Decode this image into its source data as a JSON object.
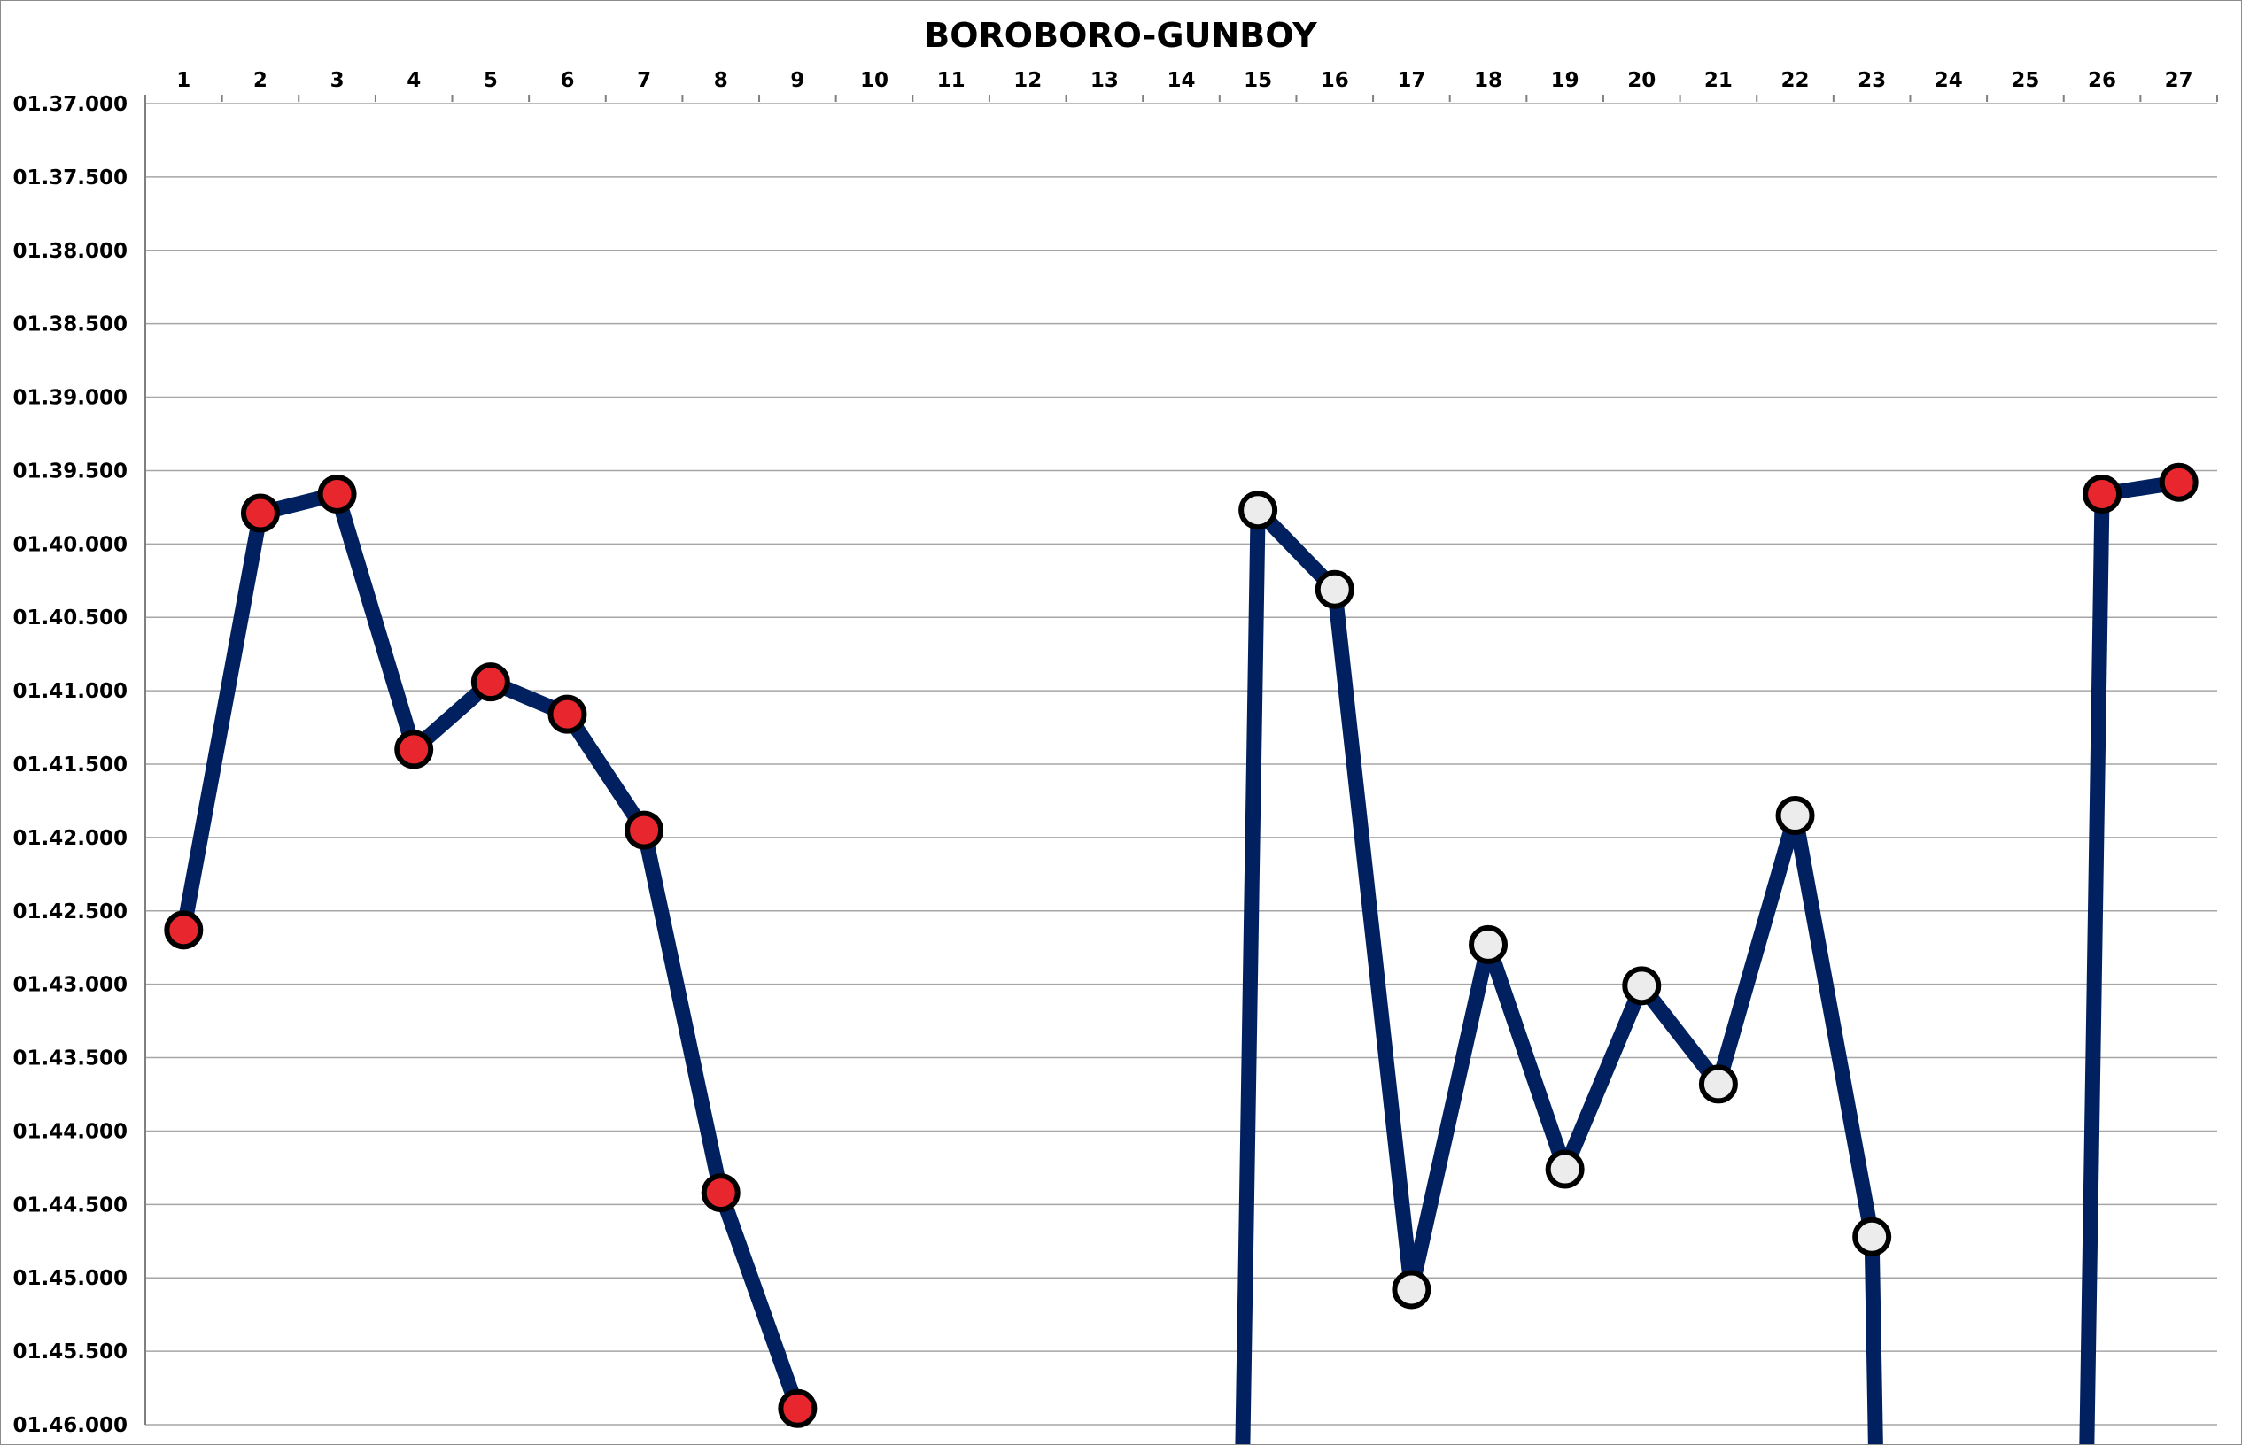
{
  "chart_data": {
    "type": "line",
    "title": "BOROBORO-GUNBOY",
    "xlabel": "",
    "ylabel": "",
    "x_axis_position": "top",
    "y_axis_inverted": true,
    "grid": true,
    "legend": "none",
    "categories": [
      "1",
      "2",
      "3",
      "4",
      "5",
      "6",
      "7",
      "8",
      "9",
      "10",
      "11",
      "12",
      "13",
      "14",
      "15",
      "16",
      "17",
      "18",
      "19",
      "20",
      "21",
      "22",
      "23",
      "24",
      "25",
      "26",
      "27"
    ],
    "y_ticks": [
      "01.37.000",
      "01.37.500",
      "01.38.000",
      "01.38.500",
      "01.39.000",
      "01.39.500",
      "01.40.000",
      "01.40.500",
      "01.41.000",
      "01.41.500",
      "01.42.000",
      "01.42.500",
      "01.43.000",
      "01.43.500",
      "01.44.000",
      "01.44.500",
      "01.45.000",
      "01.45.500",
      "01.46.000"
    ],
    "ylim_seconds": [
      97.0,
      106.0
    ],
    "series": [
      {
        "values": [
          102.63,
          99.79,
          99.66,
          101.4,
          100.94,
          101.16,
          101.95,
          104.42,
          105.89,
          null,
          null,
          null,
          null,
          null,
          99.77,
          100.31,
          105.08,
          102.73,
          104.26,
          103.01,
          103.68,
          101.85,
          104.72,
          null,
          null,
          99.66,
          99.58
        ],
        "marker_fill": [
          "#e8262d",
          "#e8262d",
          "#e8262d",
          "#e8262d",
          "#e8262d",
          "#e8262d",
          "#e8262d",
          "#e8262d",
          "#e8262d",
          null,
          null,
          null,
          null,
          null,
          "#ececec",
          "#ececec",
          "#ececec",
          "#ececec",
          "#ececec",
          "#ececec",
          "#ececec",
          "#ececec",
          "#ececec",
          null,
          null,
          "#e8262d",
          "#e8262d"
        ]
      }
    ],
    "off_chart_segments": [
      {
        "from_lap": 14,
        "to_lap": 15
      },
      {
        "from_lap": 23,
        "to_lap": 24
      },
      {
        "from_lap": 25,
        "to_lap": 26
      }
    ]
  },
  "colors": {
    "line": "#002060",
    "marker_outline": "#000000",
    "grid": "#a6a6a6",
    "background": "#ffffff"
  }
}
